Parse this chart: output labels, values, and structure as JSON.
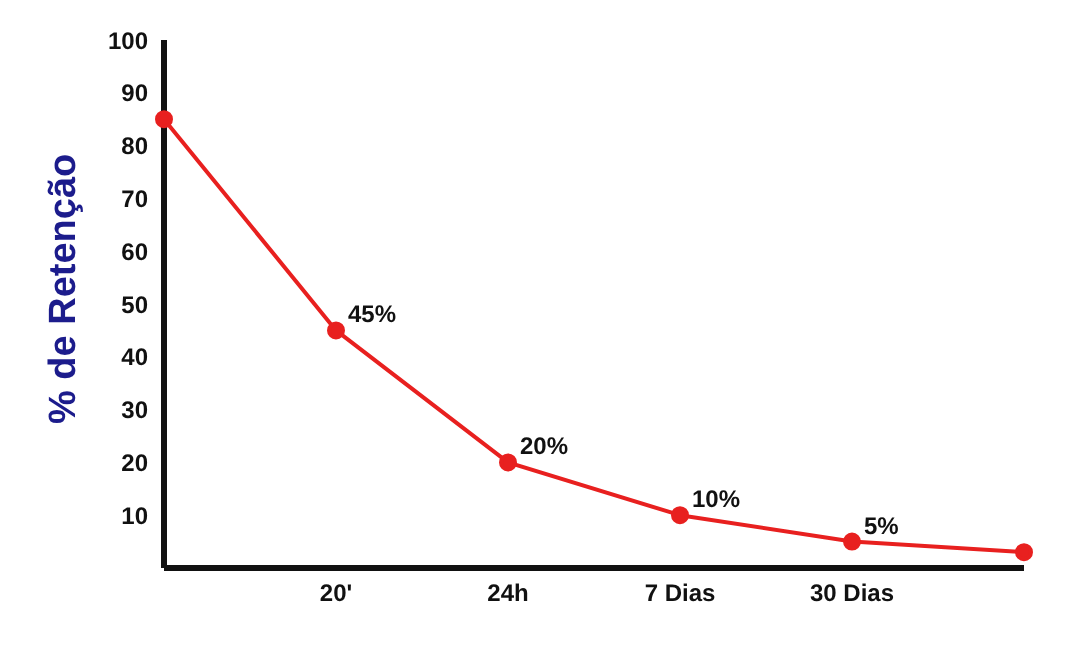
{
  "chart_data": {
    "type": "line",
    "ylabel": "% de Retenção",
    "categories": [
      null,
      "20'",
      "24h",
      "7 Dias",
      "30 Dias",
      null
    ],
    "series": [
      {
        "color": "#e8201f",
        "values": [
          85,
          45,
          20,
          10,
          5,
          3
        ],
        "value_labels": [
          null,
          "45%",
          "20%",
          "10%",
          "5%",
          null
        ]
      }
    ],
    "ylim": [
      0,
      100
    ],
    "yticks": [
      10,
      20,
      30,
      40,
      50,
      60,
      70,
      80,
      90,
      100
    ],
    "grid": false,
    "marker": "circle",
    "line_style": "solid"
  }
}
